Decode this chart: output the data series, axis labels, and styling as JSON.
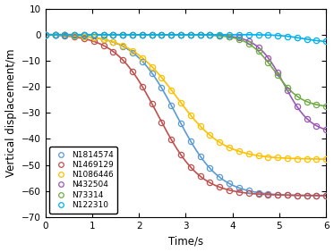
{
  "title": "",
  "xlabel": "Time/s",
  "ylabel": "Vertical displacement/m",
  "xlim": [
    0,
    6
  ],
  "ylim": [
    -70,
    10
  ],
  "xticks": [
    0,
    1,
    2,
    3,
    4,
    5,
    6
  ],
  "yticks": [
    10,
    0,
    -10,
    -20,
    -30,
    -40,
    -50,
    -60,
    -70
  ],
  "series": [
    {
      "label": "N1814574",
      "color": "#5B9BD5",
      "final_disp": -62,
      "inflection": 2.8,
      "steepness": 2.2
    },
    {
      "label": "N1469129",
      "color": "#C0504D",
      "final_disp": -62,
      "inflection": 2.4,
      "steepness": 2.2
    },
    {
      "label": "N1086446",
      "color": "#FFC000",
      "final_disp": -48,
      "inflection": 2.8,
      "steepness": 2.0
    },
    {
      "label": "N432504",
      "color": "#9B59B6",
      "final_disp": -38,
      "inflection": 5.1,
      "steepness": 3.5
    },
    {
      "label": "N73314",
      "color": "#70AD47",
      "final_disp": -28,
      "inflection": 4.9,
      "steepness": 3.5
    },
    {
      "label": "N122310",
      "color": "#00B0F0",
      "final_disp": -3,
      "inflection": 5.5,
      "steepness": 4.0
    }
  ],
  "background_color": "#ffffff",
  "marker": "o",
  "marker_size": 4.5,
  "linewidth": 1.2,
  "legend_fontsize": 6.5,
  "axis_fontsize": 8.5,
  "tick_fontsize": 7.5,
  "n_markers": 30
}
